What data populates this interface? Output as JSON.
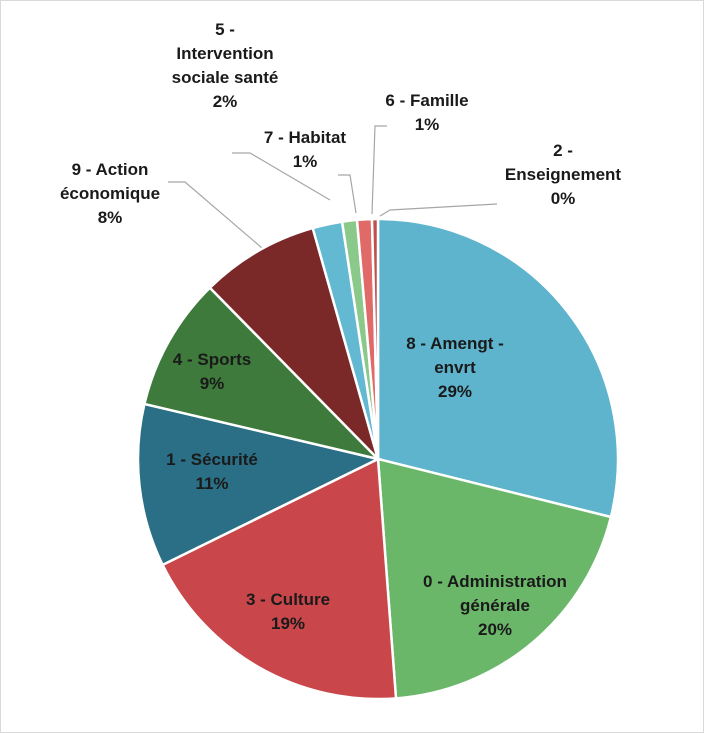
{
  "chart_data": {
    "type": "pie",
    "categories": [
      "8 - Amengt - envrt",
      "0 - Administration générale",
      "3 - Culture",
      "1 - Sécurité",
      "4 - Sports",
      "9 - Action économique",
      "5 - Intervention sociale santé",
      "7 - Habitat",
      "6 - Famille",
      "2 - Enseignement"
    ],
    "values": [
      29,
      20,
      19,
      11,
      9,
      8,
      2,
      1,
      1,
      0.4
    ],
    "value_labels": [
      "29%",
      "20%",
      "19%",
      "11%",
      "9%",
      "8%",
      "2%",
      "1%",
      "1%",
      "0%"
    ],
    "colors": [
      "#5eb3cd",
      "#6bb76a",
      "#c9474a",
      "#2a6f85",
      "#3d7a3b",
      "#7a2828",
      "#64b9d2",
      "#8ac989",
      "#e06a67",
      "#c0504d"
    ]
  }
}
